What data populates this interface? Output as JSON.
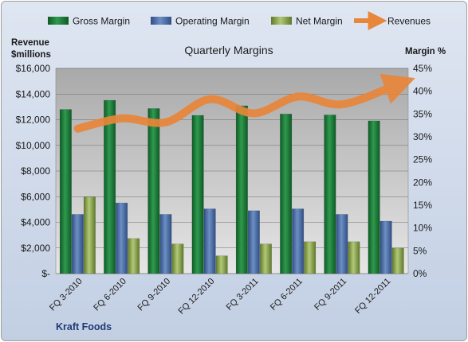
{
  "chart_data": {
    "type": "bar",
    "title": "Quarterly Margins",
    "company": "Kraft Foods",
    "y_left_label_line1": "Revenue",
    "y_left_label_line2": "$millions",
    "y_right_label": "Margin %",
    "categories": [
      "FQ 3-2010",
      "FQ 6-2010",
      "FQ 9-2010",
      "FQ 12-2010",
      "FQ 3-2011",
      "FQ 6-2011",
      "FQ 9-2011",
      "FQ 12-2011"
    ],
    "y_left_ticks": [
      "$-",
      "$2,000",
      "$4,000",
      "$6,000",
      "$8,000",
      "$10,000",
      "$12,000",
      "$14,000",
      "$16,000"
    ],
    "y_right_ticks": [
      "0%",
      "5%",
      "10%",
      "15%",
      "20%",
      "25%",
      "30%",
      "35%",
      "40%",
      "45%"
    ],
    "y_left_range": [
      0,
      16000
    ],
    "y_right_range": [
      0,
      45
    ],
    "grid": true,
    "legend_position": "top",
    "series": [
      {
        "name": "Gross Margin",
        "axis": "right",
        "kind": "bar",
        "color": "#1e7a3c",
        "values": [
          36.0,
          38.0,
          36.2,
          34.7,
          36.8,
          35.0,
          34.8,
          33.5
        ]
      },
      {
        "name": "Operating Margin",
        "axis": "right",
        "kind": "bar",
        "color": "#4a6fa8",
        "values": [
          13.0,
          15.5,
          13.0,
          14.2,
          13.8,
          14.2,
          13.0,
          11.5
        ]
      },
      {
        "name": "Net Margin",
        "axis": "right",
        "kind": "bar",
        "color": "#8aa84a",
        "values": [
          16.8,
          7.7,
          6.5,
          3.9,
          6.5,
          7.0,
          7.0,
          5.6
        ]
      },
      {
        "name": "Revenues",
        "axis": "left",
        "kind": "line",
        "color": "#e8863a",
        "values": [
          11300,
          12100,
          11800,
          13600,
          12500,
          13800,
          13200,
          14700
        ]
      }
    ]
  }
}
